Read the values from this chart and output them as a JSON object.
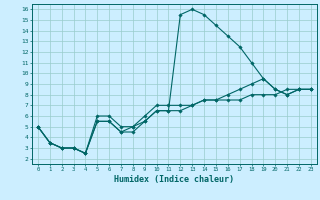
{
  "xlabel": "Humidex (Indice chaleur)",
  "background_color": "#cceeff",
  "grid_color": "#99cccc",
  "line_color": "#006666",
  "xlim": [
    -0.5,
    23.5
  ],
  "ylim": [
    1.5,
    16.5
  ],
  "xticks": [
    0,
    1,
    2,
    3,
    4,
    5,
    6,
    7,
    8,
    9,
    10,
    11,
    12,
    13,
    14,
    15,
    16,
    17,
    18,
    19,
    20,
    21,
    22,
    23
  ],
  "yticks": [
    2,
    3,
    4,
    5,
    6,
    7,
    8,
    9,
    10,
    11,
    12,
    13,
    14,
    15,
    16
  ],
  "lines": [
    {
      "x": [
        0,
        1,
        2,
        3,
        4,
        5,
        6,
        7,
        8,
        9,
        10,
        11,
        12,
        13,
        14,
        15,
        16,
        17,
        18,
        19,
        20,
        21,
        22,
        23
      ],
      "y": [
        5,
        3.5,
        3,
        3,
        2.5,
        5.5,
        5.5,
        4.5,
        4.5,
        5.5,
        6.5,
        6.5,
        15.5,
        16,
        15.5,
        14.5,
        13.5,
        12.5,
        11,
        9.5,
        8.5,
        8,
        8.5,
        8.5
      ]
    },
    {
      "x": [
        0,
        1,
        2,
        3,
        4,
        5,
        6,
        7,
        8,
        9,
        10,
        11,
        12,
        13,
        14,
        15,
        16,
        17,
        18,
        19,
        20,
        21,
        22,
        23
      ],
      "y": [
        5,
        3.5,
        3,
        3,
        2.5,
        5.5,
        5.5,
        4.5,
        5.0,
        5.5,
        6.5,
        6.5,
        6.5,
        7.0,
        7.5,
        7.5,
        8.0,
        8.5,
        9.0,
        9.5,
        8.5,
        8,
        8.5,
        8.5
      ]
    },
    {
      "x": [
        0,
        1,
        2,
        3,
        4,
        5,
        6,
        7,
        8,
        9,
        10,
        11,
        12,
        13,
        14,
        15,
        16,
        17,
        18,
        19,
        20,
        21,
        22,
        23
      ],
      "y": [
        5,
        3.5,
        3,
        3,
        2.5,
        6.0,
        6.0,
        5.0,
        5.0,
        6.0,
        7.0,
        7.0,
        7.0,
        7.0,
        7.5,
        7.5,
        7.5,
        7.5,
        8.0,
        8.0,
        8.0,
        8.5,
        8.5,
        8.5
      ]
    }
  ]
}
